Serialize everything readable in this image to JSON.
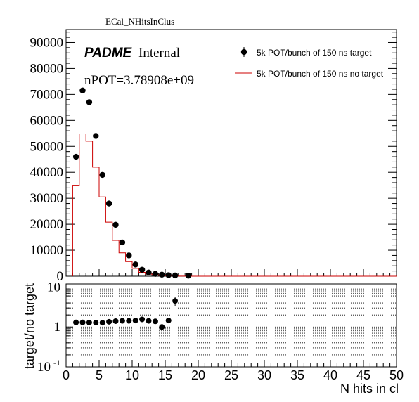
{
  "chart_data": [
    {
      "type": "scatter",
      "title": "ECal_NHitsInClus",
      "brand": "PADME",
      "brand_suffix": "Internal",
      "annotation": "nPOT=3.78908e+09",
      "xlabel": "",
      "ylabel": "",
      "xlim": [
        0,
        50
      ],
      "ylim": [
        0,
        95000
      ],
      "grid": false,
      "legend_position": "top-right",
      "x_ticks": [
        0,
        5,
        10,
        15,
        20,
        25,
        30,
        35,
        40,
        45,
        50
      ],
      "y_ticks": [
        0,
        10000,
        20000,
        30000,
        40000,
        50000,
        60000,
        70000,
        80000,
        90000
      ],
      "y_tick_labels": [
        "0",
        "10000",
        "20000",
        "30000",
        "40000",
        "50000",
        "60000",
        "70000",
        "80000",
        "90000"
      ],
      "series": [
        {
          "name": "5k POT/bunch of 150 ns target",
          "style": "markers",
          "color": "#000000",
          "x": [
            1.5,
            2.5,
            3.5,
            4.5,
            5.5,
            6.5,
            7.5,
            8.5,
            9.5,
            10.5,
            11.5,
            12.5,
            13.5,
            14.5,
            15.5,
            16.5,
            18.5
          ],
          "y": [
            46000,
            71500,
            67000,
            54000,
            39000,
            28000,
            19800,
            13000,
            8000,
            4500,
            2500,
            1400,
            900,
            600,
            400,
            300,
            200
          ]
        },
        {
          "name": "5k POT/bunch of 150 ns no target",
          "style": "histogram",
          "color": "#cc0000",
          "bin_width": 1,
          "x": [
            1.5,
            2.5,
            3.5,
            4.5,
            5.5,
            6.5,
            7.5,
            8.5,
            9.5,
            10.5,
            11.5,
            12.5,
            13.5,
            14.5,
            15.5,
            16.5,
            17.5
          ],
          "y": [
            35000,
            54800,
            52000,
            42000,
            30500,
            20800,
            13800,
            9000,
            5600,
            3000,
            1500,
            800,
            500,
            300,
            150,
            80,
            50
          ]
        }
      ]
    },
    {
      "type": "scatter",
      "xlabel": "N hits in cl",
      "ylabel": "target/no target",
      "xlim": [
        0,
        50
      ],
      "ylim": [
        0.1,
        12
      ],
      "log_y": true,
      "grid": "horizontal dotted",
      "x_ticks": [
        0,
        5,
        10,
        15,
        20,
        25,
        30,
        35,
        40,
        45,
        50
      ],
      "x_tick_labels": [
        "0",
        "5",
        "10",
        "15",
        "20",
        "25",
        "30",
        "35",
        "40",
        "45",
        "50"
      ],
      "y_major_ticks": [
        0.1,
        1,
        10
      ],
      "y_major_labels": [
        "10",
        "1",
        "10"
      ],
      "y_major_exponents": [
        "-1",
        "",
        ""
      ],
      "series": [
        {
          "name": "",
          "style": "markers",
          "color": "#000000",
          "x": [
            1.5,
            2.5,
            3.5,
            4.5,
            5.5,
            6.5,
            7.5,
            8.5,
            9.5,
            10.5,
            11.5,
            12.5,
            13.5,
            14.5,
            15.5,
            16.5
          ],
          "y": [
            1.3,
            1.3,
            1.29,
            1.28,
            1.28,
            1.35,
            1.4,
            1.42,
            1.42,
            1.45,
            1.55,
            1.42,
            1.38,
            1.0,
            1.45,
            4.5
          ],
          "err": [
            0.02,
            0.02,
            0.02,
            0.02,
            0.02,
            0.02,
            0.03,
            0.03,
            0.04,
            0.05,
            0.06,
            0.08,
            0.1,
            0.12,
            0.2,
            1.1
          ]
        }
      ]
    }
  ]
}
